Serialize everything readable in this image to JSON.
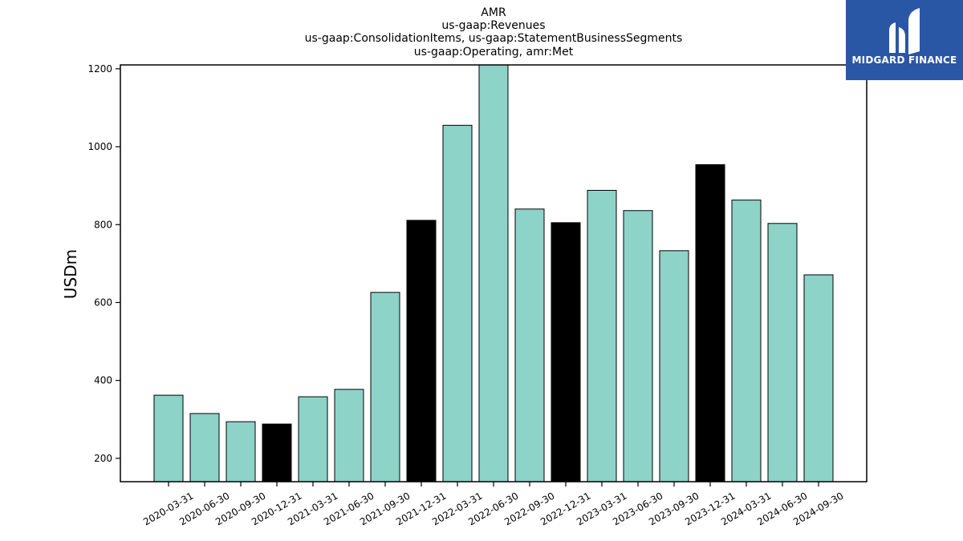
{
  "brand": {
    "name": "MIDGARD FINANCE",
    "icon": "midgard-logo-icon",
    "color": "#2a56a6"
  },
  "chart_data": {
    "type": "bar",
    "title_lines": [
      "AMR",
      "us-gaap:Revenues",
      "us-gaap:ConsolidationItems, us-gaap:StatementBusinessSegments",
      "us-gaap:Operating, amr:Met"
    ],
    "xlabel": "",
    "ylabel": "USDm",
    "ylim": [
      140,
      1210
    ],
    "yticks": [
      200,
      400,
      600,
      800,
      1000,
      1200
    ],
    "grid": false,
    "legend": "none",
    "colors": {
      "default": "#8dd3c7",
      "highlight": "#000000"
    },
    "categories": [
      "2020-03-31",
      "2020-06-30",
      "2020-09-30",
      "2020-12-31",
      "2021-03-31",
      "2021-06-30",
      "2021-09-30",
      "2021-12-31",
      "2022-03-31",
      "2022-06-30",
      "2022-09-30",
      "2022-12-31",
      "2023-03-31",
      "2023-06-30",
      "2023-09-30",
      "2023-12-31",
      "2024-03-31",
      "2024-06-30",
      "2024-09-30"
    ],
    "values": [
      362,
      315,
      294,
      288,
      358,
      377,
      626,
      811,
      1055,
      1215,
      840,
      805,
      888,
      836,
      733,
      954,
      863,
      803,
      671
    ],
    "highlighted": [
      false,
      false,
      false,
      true,
      false,
      false,
      false,
      true,
      false,
      false,
      false,
      true,
      false,
      false,
      false,
      true,
      false,
      false,
      false
    ]
  }
}
